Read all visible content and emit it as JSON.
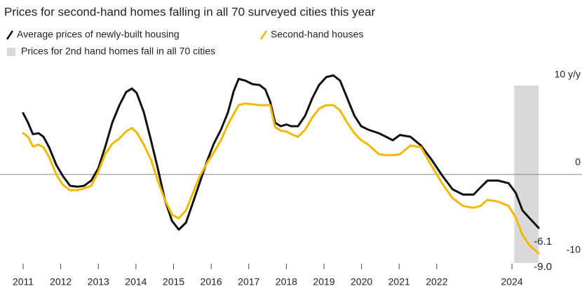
{
  "chart_data": {
    "type": "line",
    "title": "Prices for second-hand homes falling in all 70 surveyed cities this year",
    "x": [
      2011.0,
      2011.13,
      2011.26,
      2011.41,
      2011.54,
      2011.69,
      2011.88,
      2012.06,
      2012.25,
      2012.44,
      2012.62,
      2012.81,
      2013.0,
      2013.18,
      2013.37,
      2013.56,
      2013.74,
      2013.89,
      2014.02,
      2014.21,
      2014.4,
      2014.58,
      2014.77,
      2014.96,
      2015.14,
      2015.33,
      2015.51,
      2015.7,
      2015.89,
      2016.07,
      2016.26,
      2016.45,
      2016.6,
      2016.73,
      2016.91,
      2017.1,
      2017.29,
      2017.44,
      2017.57,
      2017.7,
      2017.85,
      2018.0,
      2018.13,
      2018.31,
      2018.5,
      2018.69,
      2018.87,
      2019.06,
      2019.25,
      2019.43,
      2019.62,
      2019.81,
      2019.99,
      2020.18,
      2020.46,
      2020.65,
      2020.83,
      2021.02,
      2021.3,
      2021.58,
      2021.86,
      2022.14,
      2022.42,
      2022.7,
      2022.98,
      2023.16,
      2023.35,
      2023.63,
      2023.91,
      2024.1,
      2024.28,
      2024.47,
      2024.71
    ],
    "series": [
      {
        "name": "Average prices of newly-built housing",
        "color": "#111111",
        "end_label": "-6.1",
        "values": [
          7.0,
          5.9,
          4.6,
          4.7,
          4.3,
          3.1,
          1.1,
          -0.2,
          -1.3,
          -1.4,
          -1.3,
          -0.7,
          0.7,
          3.1,
          5.9,
          7.9,
          9.4,
          9.8,
          9.3,
          7.1,
          3.9,
          0.7,
          -2.9,
          -5.3,
          -6.3,
          -5.5,
          -3.3,
          -0.9,
          1.5,
          3.5,
          5.1,
          7.1,
          9.5,
          10.9,
          10.7,
          10.3,
          10.2,
          9.7,
          8.3,
          5.9,
          5.5,
          5.7,
          5.5,
          5.5,
          6.7,
          8.7,
          10.2,
          11.1,
          11.3,
          10.7,
          8.7,
          6.7,
          5.5,
          5.1,
          4.7,
          4.3,
          3.9,
          4.5,
          4.3,
          3.3,
          1.7,
          -0.1,
          -1.7,
          -2.3,
          -2.3,
          -1.5,
          -0.7,
          -0.7,
          -1.0,
          -2.1,
          -4.1,
          -5.0,
          -6.1
        ]
      },
      {
        "name": "Second-hand houses",
        "color": "#f5b800",
        "end_label": "-9.0",
        "values": [
          4.7,
          4.3,
          3.2,
          3.4,
          3.1,
          2.0,
          0.0,
          -1.2,
          -1.8,
          -1.8,
          -1.6,
          -1.3,
          0.3,
          2.3,
          3.5,
          4.1,
          4.9,
          5.3,
          4.8,
          3.4,
          1.7,
          -0.7,
          -2.9,
          -4.6,
          -5.0,
          -4.1,
          -2.2,
          -0.2,
          1.3,
          2.5,
          3.9,
          5.7,
          6.9,
          7.9,
          8.1,
          8.0,
          7.9,
          7.9,
          7.9,
          5.4,
          5.0,
          4.9,
          4.6,
          4.3,
          5.1,
          6.5,
          7.5,
          7.9,
          7.9,
          7.3,
          5.9,
          4.7,
          3.9,
          3.4,
          2.3,
          2.2,
          2.2,
          2.3,
          3.3,
          3.1,
          1.0,
          -1.0,
          -2.7,
          -3.6,
          -3.8,
          -3.6,
          -2.9,
          -3.1,
          -3.6,
          -4.9,
          -6.9,
          -8.1,
          -9.0
        ]
      }
    ],
    "band": {
      "name": "Prices for 2nd hand homes fall in all 70 cities",
      "x": [
        2024.06,
        2024.71
      ],
      "color": "#d9d9d9"
    },
    "xlim": [
      2011,
      2024.8
    ],
    "xticks": [
      2011,
      2012,
      2013,
      2014,
      2015,
      2016,
      2017,
      2018,
      2019,
      2020,
      2021,
      2022,
      2024
    ],
    "ylim": [
      -10.5,
      11.5
    ],
    "yticks": [
      {
        "value": 10,
        "label": "10 y/y"
      },
      0,
      -10
    ],
    "zero_line": true
  }
}
